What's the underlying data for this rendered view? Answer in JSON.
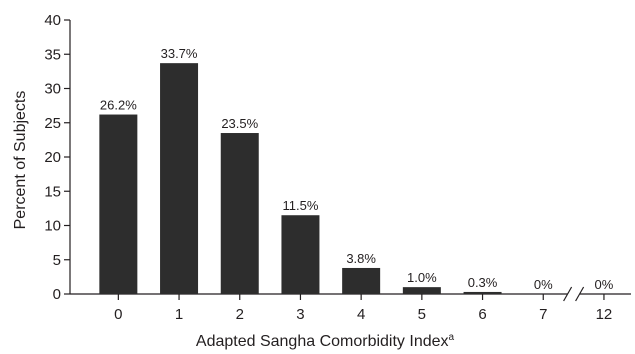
{
  "chart_data": {
    "type": "bar",
    "title": "",
    "xlabel": "Adapted Sangha Comorbidity Index",
    "xlabel_superscript": "a",
    "ylabel": "Percent of Subjects",
    "ylim": [
      0,
      40
    ],
    "yticks": [
      0,
      5,
      10,
      15,
      20,
      25,
      30,
      35,
      40
    ],
    "categories": [
      "0",
      "1",
      "2",
      "3",
      "4",
      "5",
      "6",
      "7",
      "12"
    ],
    "values": [
      26.2,
      33.7,
      23.5,
      11.5,
      3.8,
      1.0,
      0.3,
      0,
      0
    ],
    "data_labels": [
      "26.2%",
      "33.7%",
      "23.5%",
      "11.5%",
      "3.8%",
      "1.0%",
      "0.3%",
      "0%",
      "0%"
    ],
    "axis_break_between": [
      "7",
      "12"
    ],
    "grid": false,
    "legend": "none",
    "bar_color": "#2d2d2d"
  }
}
